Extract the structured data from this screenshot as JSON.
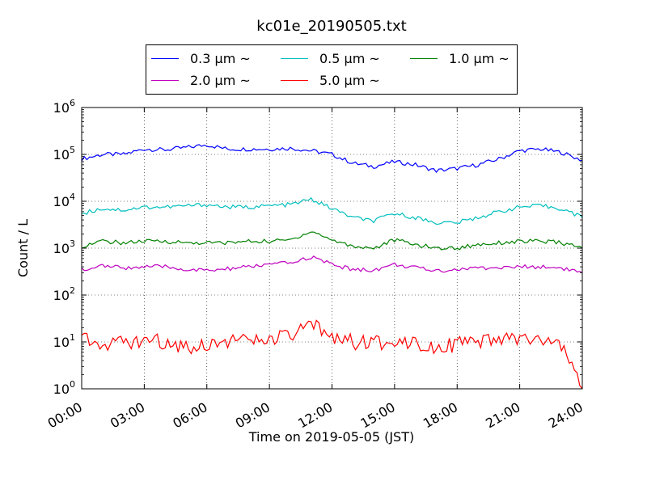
{
  "chart_data": {
    "type": "line",
    "title": "kc01e_20190505.txt",
    "xlabel": "Time on 2019-05-05 (JST)",
    "ylabel": "Count / L",
    "yscale": "log",
    "ylim": [
      1,
      1000000
    ],
    "xlim": [
      "00:00",
      "24:00"
    ],
    "grid": true,
    "legend_position": "top, above plot",
    "x_ticks": [
      "00:00",
      "03:00",
      "06:00",
      "09:00",
      "12:00",
      "15:00",
      "18:00",
      "21:00",
      "24:00"
    ],
    "y_ticks": [
      {
        "base": "10",
        "exp": "0"
      },
      {
        "base": "10",
        "exp": "1"
      },
      {
        "base": "10",
        "exp": "2"
      },
      {
        "base": "10",
        "exp": "3"
      },
      {
        "base": "10",
        "exp": "4"
      },
      {
        "base": "10",
        "exp": "5"
      },
      {
        "base": "10",
        "exp": "6"
      }
    ],
    "x": [
      "00:00",
      "01:00",
      "02:00",
      "03:00",
      "04:00",
      "05:00",
      "06:00",
      "07:00",
      "08:00",
      "09:00",
      "10:00",
      "11:00",
      "12:00",
      "13:00",
      "14:00",
      "15:00",
      "16:00",
      "17:00",
      "18:00",
      "19:00",
      "20:00",
      "21:00",
      "22:00",
      "23:00",
      "24:00"
    ],
    "series": [
      {
        "name": "0.3 μm ~",
        "color": "#0000ff",
        "values": [
          80000,
          100000,
          100000,
          130000,
          125000,
          140000,
          160000,
          130000,
          130000,
          130000,
          135000,
          120000,
          100000,
          65000,
          55000,
          70000,
          60000,
          45000,
          50000,
          60000,
          80000,
          120000,
          130000,
          110000,
          75000
        ]
      },
      {
        "name": "0.5 μm ~",
        "color": "#00bfbf",
        "values": [
          5500,
          7000,
          6500,
          7500,
          7500,
          8000,
          8500,
          7500,
          7500,
          8000,
          8500,
          11000,
          7000,
          4500,
          3800,
          5500,
          4500,
          3500,
          3500,
          4500,
          6000,
          7500,
          8000,
          7000,
          4500
        ]
      },
      {
        "name": "1.0 μm ~",
        "color": "#008000",
        "values": [
          1100,
          1400,
          1300,
          1400,
          1400,
          1300,
          1300,
          1300,
          1400,
          1400,
          1500,
          2300,
          1500,
          1100,
          1000,
          1500,
          1200,
          1000,
          1000,
          1200,
          1300,
          1400,
          1400,
          1300,
          1000
        ]
      },
      {
        "name": "2.0 μm ~",
        "color": "#bf00bf",
        "values": [
          350,
          420,
          380,
          400,
          400,
          350,
          330,
          360,
          400,
          450,
          480,
          650,
          450,
          350,
          340,
          450,
          380,
          330,
          350,
          380,
          380,
          400,
          400,
          380,
          300
        ]
      },
      {
        "name": "5.0 μm ~",
        "color": "#ff0000",
        "values": [
          13,
          10,
          9,
          11,
          10,
          8,
          9,
          11,
          10,
          11,
          13,
          22,
          14,
          10,
          9,
          11,
          10,
          8,
          9,
          9,
          11,
          12,
          10,
          8,
          1
        ]
      }
    ]
  }
}
